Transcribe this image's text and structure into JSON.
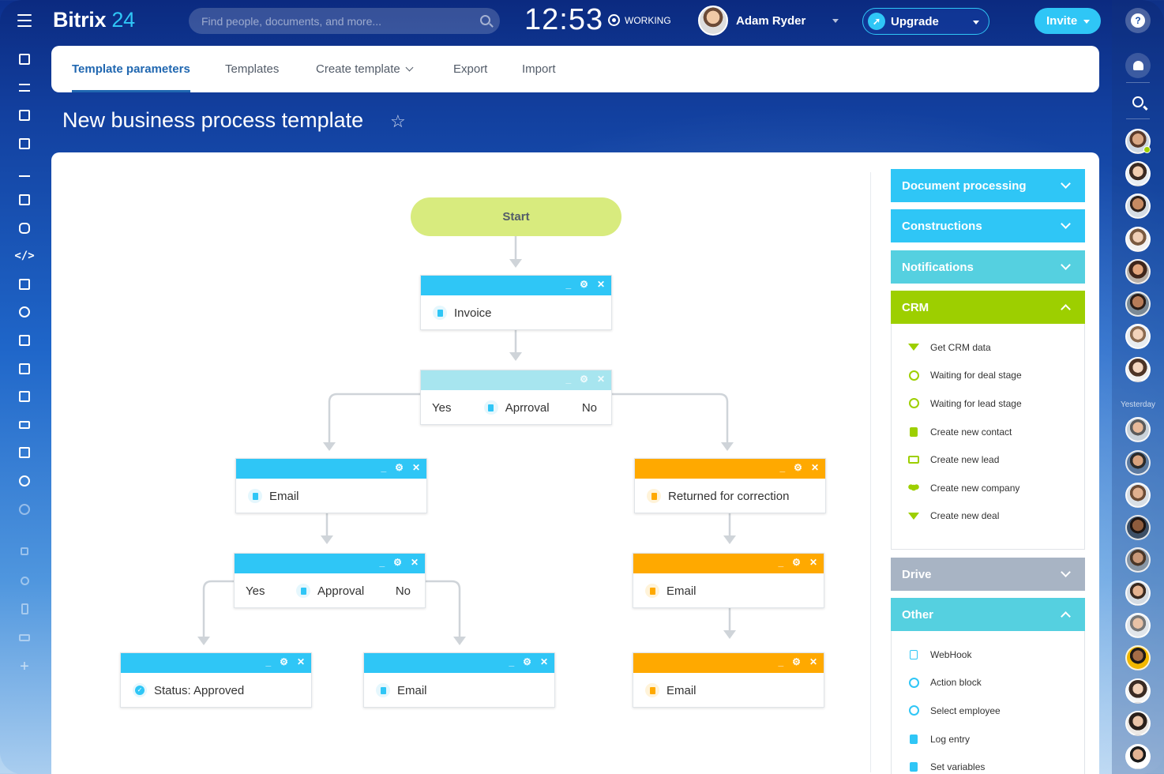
{
  "app": {
    "logo_name": "Bitrix",
    "logo_num": "24",
    "search_placeholder": "Find people, documents, and more...",
    "clock": "12:53",
    "status": "WORKING",
    "user_name": "Adam Ryder",
    "upgrade_label": "Upgrade",
    "invite_label": "Invite",
    "help_label": "?",
    "yesterday_label": "Yesterday"
  },
  "tabs": [
    {
      "label": "Template parameters",
      "active": true
    },
    {
      "label": "Templates"
    },
    {
      "label": "Create template",
      "has_dropdown": true
    },
    {
      "label": "Export"
    },
    {
      "label": "Import"
    }
  ],
  "page": {
    "title": "New business process template"
  },
  "flow": {
    "start": "Start",
    "invoice": "Invoice",
    "approval_top": {
      "yes": "Yes",
      "label": "Aprroval",
      "no": "No"
    },
    "email_left": "Email",
    "returned": "Returned for correction",
    "approval_left": {
      "yes": "Yes",
      "label": "Approval",
      "no": "No"
    },
    "email_right_mid": "Email",
    "status_approved": "Status: Approved",
    "email_center_bottom": "Email",
    "email_right_bottom": "Email",
    "controls": {
      "minimize": "_",
      "settings": "⚙",
      "close": "✕"
    }
  },
  "sidebar": {
    "panels": [
      {
        "label": "Document processing",
        "color": "#2fc6f6",
        "open": false
      },
      {
        "label": "Constructions",
        "color": "#2fc6f6",
        "open": false
      },
      {
        "label": "Notifications",
        "color": "#55d0e0",
        "open": false
      },
      {
        "label": "CRM",
        "color": "#9dcf00",
        "open": true
      },
      {
        "label": "Drive",
        "color": "#a8b4c4",
        "open": false
      },
      {
        "label": "Other",
        "color": "#55d0e0",
        "open": true
      }
    ],
    "crm_items": [
      {
        "label": "Get CRM data",
        "icon": "filter-icon"
      },
      {
        "label": "Waiting for deal stage",
        "icon": "clock-icon"
      },
      {
        "label": "Waiting for lead stage",
        "icon": "clock-icon"
      },
      {
        "label": "Create new contact",
        "icon": "contact-card-icon"
      },
      {
        "label": "Create new lead",
        "icon": "lead-icon"
      },
      {
        "label": "Create new company",
        "icon": "company-icon"
      },
      {
        "label": "Create new deal",
        "icon": "filter-icon"
      }
    ],
    "other_items": [
      {
        "label": "WebHook",
        "icon": "document-icon"
      },
      {
        "label": "Action block",
        "icon": "clock-icon"
      },
      {
        "label": "Select employee",
        "icon": "clock-icon"
      },
      {
        "label": "Log entry",
        "icon": "document-icon"
      },
      {
        "label": "Set variables",
        "icon": "document-icon"
      }
    ]
  },
  "colors": {
    "accent": "#2fc6f6",
    "crm_green": "#9dcf00",
    "orange": "#ffa900",
    "start_fill": "#d8eb7e"
  }
}
